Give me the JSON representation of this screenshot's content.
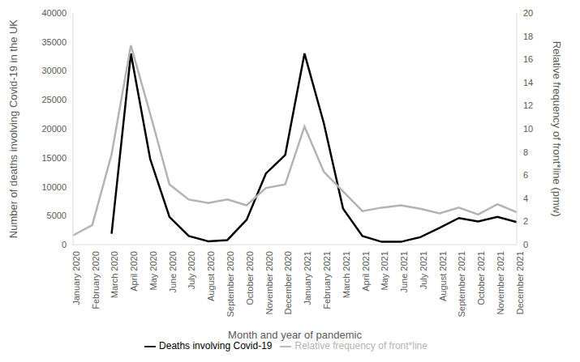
{
  "chart_data": {
    "type": "line",
    "x_label": "Month and year of pandemic",
    "y_label": "Number of deaths involving Covid-19 in the UK",
    "y2_label": "Relative frequency of front*line (pmw)",
    "categories": [
      "January 2020",
      "February 2020",
      "March 2020",
      "April 2020",
      "May 2020",
      "June 2020",
      "July 2020",
      "August 2020",
      "September 2020",
      "October 2020",
      "November 2020",
      "December 2020",
      "January 2021",
      "February 2021",
      "March 2021",
      "April 2021",
      "May 2021",
      "June 2021",
      "July 2021",
      "August 2021",
      "September 2021",
      "October 2021",
      "November 2021",
      "December 2021"
    ],
    "series": [
      {
        "name": "Deaths involving Covid-19",
        "color": "#000000",
        "values": [
          null,
          null,
          1900,
          33000,
          14800,
          4800,
          1500,
          600,
          800,
          4300,
          12300,
          15500,
          33000,
          21000,
          6200,
          1500,
          500,
          500,
          1300,
          2900,
          4600,
          4000,
          4800,
          3900
        ]
      },
      {
        "name": "Relative frequency of front*line",
        "color": "#b3b3b3",
        "axis": "y2",
        "values": [
          0.8,
          1.7,
          7.8,
          17.2,
          11.3,
          5.2,
          3.9,
          3.6,
          3.9,
          3.4,
          4.9,
          5.2,
          10.2,
          6.3,
          4.6,
          2.9,
          3.2,
          3.4,
          3.1,
          2.7,
          3.2,
          2.6,
          3.5,
          2.8
        ]
      }
    ],
    "ylim": [
      0,
      40000
    ],
    "yticks": [
      0,
      5000,
      10000,
      15000,
      20000,
      25000,
      30000,
      35000,
      40000
    ],
    "y2lim": [
      0,
      20
    ],
    "y2ticks": [
      0,
      2,
      4,
      6,
      8,
      10,
      12,
      14,
      16,
      18,
      20
    ],
    "legend": "bottom",
    "grid": false
  }
}
